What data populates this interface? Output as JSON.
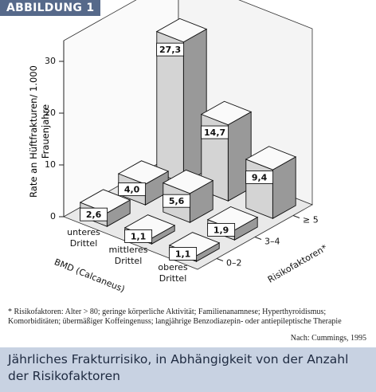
{
  "header": "ABBILDUNG 1",
  "chart_data": {
    "type": "bar3d",
    "ylabel": "Rate an Hüftfrakturen/ 1.000 Frauenjahre",
    "xlabel": "BMD (Calcaneus)",
    "zlabel": "Risikofaktoren*",
    "categories": [
      "unteres Drittel",
      "mittleres Drittel",
      "oberes Drittel"
    ],
    "color": "#d4d4d4",
    "series": [
      {
        "name": "0–2",
        "values": [
          2.6,
          1.1,
          1.1
        ],
        "value_labels": [
          "2,6",
          "1,1",
          "1,1"
        ]
      },
      {
        "name": "3–4",
        "values": [
          4.0,
          5.6,
          1.9
        ],
        "value_labels": [
          "4,0",
          "5,6",
          "1,9"
        ]
      },
      {
        "name": "≥ 5",
        "values": [
          27.3,
          14.7,
          9.4
        ],
        "value_labels": [
          "27,3",
          "14,7",
          "9,4"
        ]
      }
    ],
    "ylim": [
      0,
      34
    ],
    "yticks": [
      0,
      10,
      20,
      30
    ],
    "grid": false
  },
  "footnote": "* Risikofaktoren: Alter > 80; geringe körperliche Aktivität; Familienanamnese; Hyperthyroidismus; Komorbiditäten; übermäßiger Koffeingenuss; langjährige Benzodiazepin- oder antiepileptische Therapie",
  "source": "Nach: Cummings, 1995",
  "caption": "Jährliches Frakturrisiko, in Abhängigkeit von der Anzahl der Risikofaktoren"
}
